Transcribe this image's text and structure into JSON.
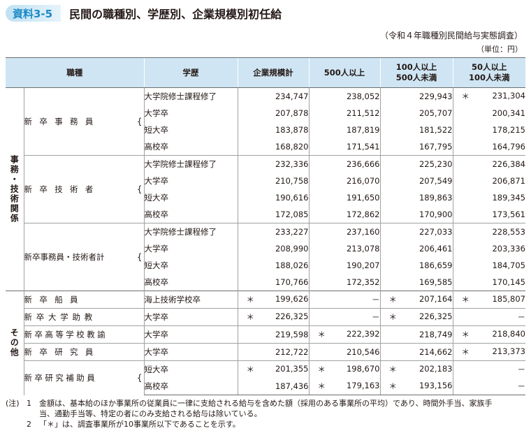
{
  "header": {
    "badge": "資料3-5",
    "title": "民間の職種別、学歴別、企業規模別初任給",
    "source": "（令和４年職種別民間給与実態調査）",
    "unit": "（単位：円）"
  },
  "table": {
    "headers": {
      "job": "職種",
      "edu": "学歴",
      "col1": "企業規模計",
      "col2": "500人以上",
      "col3a": "100人以上",
      "col3b": "500人未満",
      "col4a": "50人以上",
      "col4b": "100人未満"
    },
    "groups": {
      "office_tech": "事務・技術関係",
      "other": "その他"
    },
    "subgroups": {
      "clerk": "新卒事務員",
      "engineer": "新卒技術者",
      "total": "新卒事務員・技術者計"
    },
    "edu": {
      "grad": "大学院修士課程修了",
      "univ": "大学卒",
      "junior": "短大卒",
      "high": "高校卒",
      "maritime": "海上技術学校卒"
    },
    "rows": {
      "clerk_grad": [
        "234,747",
        "238,052",
        "229,943",
        "231,304"
      ],
      "clerk_univ": [
        "207,878",
        "211,512",
        "205,707",
        "200,341"
      ],
      "clerk_jun": [
        "183,878",
        "187,819",
        "181,522",
        "178,215"
      ],
      "clerk_high": [
        "168,820",
        "171,541",
        "167,795",
        "164,796"
      ],
      "eng_grad": [
        "232,336",
        "236,666",
        "225,230",
        "226,384"
      ],
      "eng_univ": [
        "210,758",
        "216,070",
        "207,549",
        "206,871"
      ],
      "eng_jun": [
        "190,616",
        "191,650",
        "189,863",
        "189,345"
      ],
      "eng_high": [
        "172,085",
        "172,862",
        "170,900",
        "173,561"
      ],
      "tot_grad": [
        "233,227",
        "237,160",
        "227,033",
        "228,553"
      ],
      "tot_univ": [
        "208,990",
        "213,078",
        "206,461",
        "203,336"
      ],
      "tot_jun": [
        "188,026",
        "190,207",
        "186,659",
        "184,705"
      ],
      "tot_high": [
        "170,766",
        "172,352",
        "169,585",
        "170,145"
      ],
      "sailor": [
        "199,626",
        "－",
        "207,164",
        "185,807"
      ],
      "univ_asst": [
        "226,325",
        "－",
        "226,325",
        "－"
      ],
      "hs_teacher": [
        "219,598",
        "222,392",
        "218,749",
        "218,840"
      ],
      "researcher": [
        "212,722",
        "210,546",
        "214,662",
        "213,373"
      ],
      "ra_jun": [
        "201,355",
        "198,670",
        "202,183",
        "－"
      ],
      "ra_high": [
        "187,436",
        "179,163",
        "193,156",
        "－"
      ]
    },
    "other_roles": {
      "sailor": "新卒船員",
      "univ_asst": "新卒大学助教",
      "hs_teacher": "新卒高等学校教諭",
      "researcher": "新卒研究員",
      "research_asst": "新卒研究補助員"
    },
    "star": "＊"
  },
  "notes": {
    "prefix": "(注)",
    "n1_num": "1",
    "n1_a": "金額は、基本給のほか事業所の従業員に一律に支給される給与を含めた額（採用のある事業所の平均）であり、時間外手当、家族手",
    "n1_b": "当、通勤手当等、特定の者にのみ支給される給与は除いている。",
    "n2_num": "2",
    "n2": "「＊」は、調査事業所が10事業所以下であることを示す。"
  }
}
